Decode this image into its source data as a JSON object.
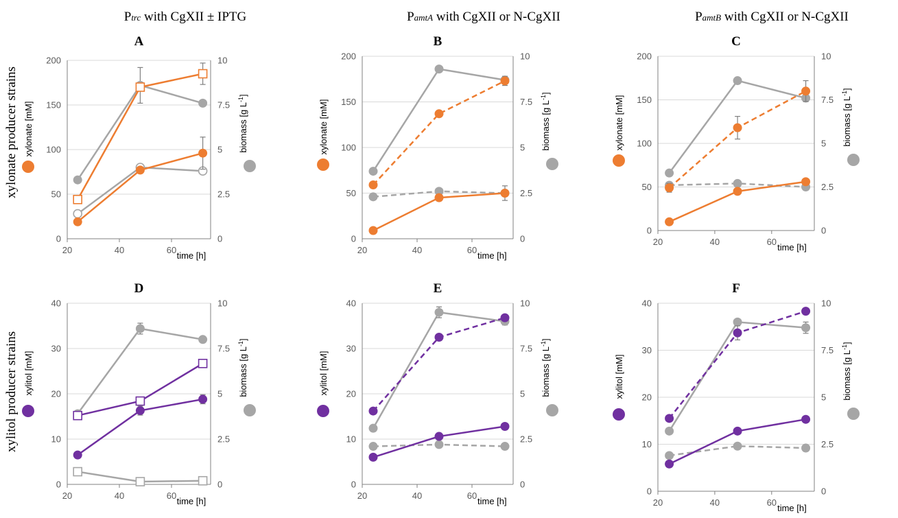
{
  "column_titles": [
    {
      "pre": "P",
      "sub": "trc",
      "post": " with CgXII ± IPTG"
    },
    {
      "pre": "P",
      "sub": "amtA",
      "post": " with CgXII or N-CgXII"
    },
    {
      "pre": "P",
      "sub": "amtB",
      "post": " with CgXII or N-CgXII"
    }
  ],
  "row_labels": [
    "xylonate producer strains",
    "xylitol producer strains"
  ],
  "colors": {
    "orange": "#ED7D31",
    "purple": "#7030A0",
    "gray": "#A6A6A6",
    "grid": "#D9D9D9",
    "axis": "#808080"
  },
  "chart_data": [
    {
      "panel": "A",
      "type": "line",
      "xlabel": "time [h]",
      "ylabel": "xylonate [mM]",
      "y2label": "biomass [g L-1]",
      "xlim": [
        20,
        75
      ],
      "xticks": [
        20,
        40,
        60
      ],
      "ylim": [
        0,
        200
      ],
      "yticks": [
        0,
        50,
        100,
        150,
        200
      ],
      "y2lim": [
        0,
        10
      ],
      "y2ticks": [
        "0",
        "2.5",
        "5",
        "7.5",
        "10"
      ],
      "series": [
        {
          "axis": "left",
          "color": "orange",
          "marker": "square-open",
          "dash": false,
          "x": [
            24,
            48,
            72
          ],
          "y": [
            44,
            170,
            185
          ],
          "err": [
            0,
            0,
            12
          ]
        },
        {
          "axis": "left",
          "color": "orange",
          "marker": "circle-filled",
          "dash": false,
          "x": [
            24,
            48,
            72
          ],
          "y": [
            19,
            77,
            96
          ],
          "err": [
            0,
            0,
            18
          ]
        },
        {
          "axis": "right",
          "color": "gray",
          "marker": "circle-filled",
          "dash": false,
          "x": [
            24,
            48,
            72
          ],
          "y": [
            3.3,
            8.6,
            7.6
          ],
          "err": [
            0,
            1.0,
            0
          ]
        },
        {
          "axis": "right",
          "color": "gray",
          "marker": "circle-open",
          "dash": false,
          "x": [
            24,
            48,
            72
          ],
          "y": [
            1.4,
            4.0,
            3.8
          ],
          "err": [
            0,
            0,
            0
          ]
        }
      ]
    },
    {
      "panel": "B",
      "type": "line",
      "xlabel": "time [h]",
      "ylabel": "xylonate [mM]",
      "y2label": "biomass [g L-1]",
      "xlim": [
        20,
        75
      ],
      "xticks": [
        20,
        40,
        60
      ],
      "ylim": [
        0,
        200
      ],
      "yticks": [
        0,
        50,
        100,
        150,
        200
      ],
      "y2lim": [
        0,
        10
      ],
      "y2ticks": [
        "0",
        "2.5",
        "5",
        "7.5",
        "10"
      ],
      "series": [
        {
          "axis": "left",
          "color": "orange",
          "marker": "circle-filled",
          "dash": true,
          "x": [
            24,
            48,
            72
          ],
          "y": [
            59,
            137,
            173
          ],
          "err": [
            0,
            0,
            5
          ]
        },
        {
          "axis": "left",
          "color": "orange",
          "marker": "circle-filled",
          "dash": false,
          "x": [
            24,
            48,
            72
          ],
          "y": [
            9,
            45,
            50
          ],
          "err": [
            0,
            0,
            0
          ]
        },
        {
          "axis": "right",
          "color": "gray",
          "marker": "circle-filled",
          "dash": false,
          "x": [
            24,
            48,
            72
          ],
          "y": [
            3.7,
            9.3,
            8.7
          ],
          "err": [
            0,
            0,
            0.2
          ]
        },
        {
          "axis": "right",
          "color": "gray",
          "marker": "circle-filled",
          "dash": true,
          "x": [
            24,
            48,
            72
          ],
          "y": [
            2.3,
            2.6,
            2.5
          ],
          "err": [
            0,
            0,
            0.4
          ]
        }
      ]
    },
    {
      "panel": "C",
      "type": "line",
      "xlabel": "time [h]",
      "ylabel": "xylonate [mM]",
      "y2label": "biomass [g L-1]",
      "xlim": [
        20,
        75
      ],
      "xticks": [
        20,
        40,
        60
      ],
      "ylim": [
        0,
        200
      ],
      "yticks": [
        0,
        50,
        100,
        150,
        200
      ],
      "y2lim": [
        0,
        10
      ],
      "y2ticks": [
        "0",
        "2.5",
        "5",
        "7.5",
        "10"
      ],
      "series": [
        {
          "axis": "left",
          "color": "orange",
          "marker": "circle-filled",
          "dash": true,
          "x": [
            24,
            48,
            72
          ],
          "y": [
            49,
            118,
            160
          ],
          "err": [
            5,
            13,
            12
          ]
        },
        {
          "axis": "left",
          "color": "orange",
          "marker": "circle-filled",
          "dash": false,
          "x": [
            24,
            48,
            72
          ],
          "y": [
            10,
            45,
            56
          ],
          "err": [
            0,
            0,
            0
          ]
        },
        {
          "axis": "right",
          "color": "gray",
          "marker": "circle-filled",
          "dash": false,
          "x": [
            24,
            48,
            72
          ],
          "y": [
            3.3,
            8.6,
            7.6
          ],
          "err": [
            0,
            0,
            0.2
          ]
        },
        {
          "axis": "right",
          "color": "gray",
          "marker": "circle-filled",
          "dash": true,
          "x": [
            24,
            48,
            72
          ],
          "y": [
            2.6,
            2.7,
            2.5
          ],
          "err": [
            0,
            0,
            0
          ]
        }
      ]
    },
    {
      "panel": "D",
      "type": "line",
      "xlabel": "time [h]",
      "ylabel": "xylitol [mM]",
      "y2label": "biomass [g L-1]",
      "xlim": [
        20,
        75
      ],
      "xticks": [
        20,
        40,
        60
      ],
      "ylim": [
        0,
        40
      ],
      "yticks": [
        0,
        10,
        20,
        30,
        40
      ],
      "y2lim": [
        0,
        10
      ],
      "y2ticks": [
        "0",
        "2.5",
        "5",
        "7.5",
        "10"
      ],
      "series": [
        {
          "axis": "left",
          "color": "purple",
          "marker": "square-open",
          "dash": false,
          "x": [
            24,
            48,
            72
          ],
          "y": [
            15.2,
            18.4,
            26.7
          ],
          "err": [
            0,
            0,
            0
          ]
        },
        {
          "axis": "left",
          "color": "purple",
          "marker": "circle-filled",
          "dash": false,
          "x": [
            24,
            48,
            72
          ],
          "y": [
            6.5,
            16.3,
            18.8
          ],
          "err": [
            0,
            1.0,
            1.0
          ]
        },
        {
          "axis": "right",
          "color": "gray",
          "marker": "circle-filled",
          "dash": false,
          "x": [
            24,
            48,
            72
          ],
          "y": [
            3.9,
            8.6,
            8.0
          ],
          "err": [
            0,
            0.3,
            0
          ]
        },
        {
          "axis": "right",
          "color": "gray",
          "marker": "square-open",
          "dash": false,
          "x": [
            24,
            48,
            72
          ],
          "y": [
            0.7,
            0.15,
            0.2
          ],
          "err": [
            0,
            0,
            0
          ]
        }
      ]
    },
    {
      "panel": "E",
      "type": "line",
      "xlabel": "time [h]",
      "ylabel": "xylitol [mM]",
      "y2label": "biomass [g L-1]",
      "xlim": [
        20,
        75
      ],
      "xticks": [
        20,
        40,
        60
      ],
      "ylim": [
        0,
        40
      ],
      "yticks": [
        0,
        10,
        20,
        30,
        40
      ],
      "y2lim": [
        0,
        10
      ],
      "y2ticks": [
        "0",
        "2.5",
        "5",
        "7.5",
        "10"
      ],
      "series": [
        {
          "axis": "left",
          "color": "purple",
          "marker": "circle-filled",
          "dash": true,
          "x": [
            24,
            48,
            72
          ],
          "y": [
            16.2,
            32.5,
            36.8
          ],
          "err": [
            0,
            0,
            0
          ]
        },
        {
          "axis": "left",
          "color": "purple",
          "marker": "circle-filled",
          "dash": false,
          "x": [
            24,
            48,
            72
          ],
          "y": [
            6.0,
            10.6,
            12.8
          ],
          "err": [
            0,
            0,
            0
          ]
        },
        {
          "axis": "right",
          "color": "gray",
          "marker": "circle-filled",
          "dash": false,
          "x": [
            24,
            48,
            72
          ],
          "y": [
            3.1,
            9.5,
            9.0
          ],
          "err": [
            0,
            0.3,
            0.2
          ]
        },
        {
          "axis": "right",
          "color": "gray",
          "marker": "circle-filled",
          "dash": true,
          "x": [
            24,
            48,
            72
          ],
          "y": [
            2.1,
            2.2,
            2.1
          ],
          "err": [
            0,
            0,
            0
          ]
        }
      ]
    },
    {
      "panel": "F",
      "type": "line",
      "xlabel": "time [h]",
      "ylabel": "xylitol [mM]",
      "y2label": "biomass [g L-1]",
      "xlim": [
        20,
        75
      ],
      "xticks": [
        20,
        40,
        60
      ],
      "ylim": [
        0,
        40
      ],
      "yticks": [
        0,
        10,
        20,
        30,
        40
      ],
      "y2lim": [
        0,
        10
      ],
      "y2ticks": [
        "0",
        "2.5",
        "5",
        "7.5",
        "10"
      ],
      "series": [
        {
          "axis": "left",
          "color": "purple",
          "marker": "circle-filled",
          "dash": true,
          "x": [
            24,
            48,
            72
          ],
          "y": [
            15.5,
            33.7,
            38.3
          ],
          "err": [
            0,
            1.5,
            0
          ]
        },
        {
          "axis": "left",
          "color": "purple",
          "marker": "circle-filled",
          "dash": false,
          "x": [
            24,
            48,
            72
          ],
          "y": [
            5.8,
            12.8,
            15.3
          ],
          "err": [
            0,
            0,
            0
          ]
        },
        {
          "axis": "right",
          "color": "gray",
          "marker": "circle-filled",
          "dash": false,
          "x": [
            24,
            48,
            72
          ],
          "y": [
            3.2,
            9.0,
            8.7
          ],
          "err": [
            0,
            0,
            0.3
          ]
        },
        {
          "axis": "right",
          "color": "gray",
          "marker": "circle-filled",
          "dash": true,
          "x": [
            24,
            48,
            72
          ],
          "y": [
            1.9,
            2.4,
            2.3
          ],
          "err": [
            0,
            0.1,
            0
          ]
        }
      ]
    }
  ]
}
